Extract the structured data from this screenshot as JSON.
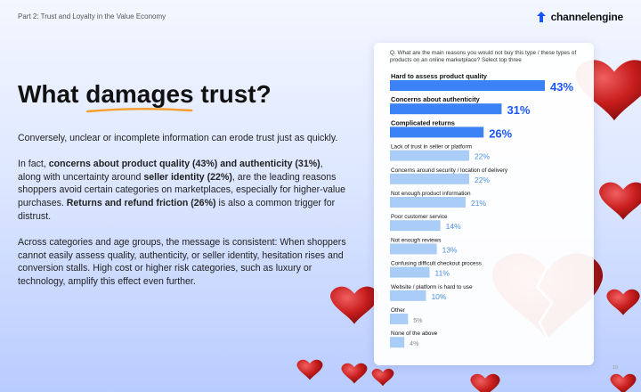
{
  "header": {
    "section_label": "Part 2: Trust and Loyalty in the Value Economy",
    "brand": "channelengine",
    "brand_color": "#1a56ff"
  },
  "headline": {
    "prefix": "What ",
    "emphasis": "damages",
    "suffix": " trust?",
    "underline_color": "#f59e2b"
  },
  "body": {
    "p1": "Conversely, unclear or incomplete information can erode trust just as quickly.",
    "p2": {
      "t1": "In fact, ",
      "b1": "concerns about product quality (43%) and authenticity (31%)",
      "t2": ", along with uncertainty around ",
      "b2": "seller identity (22%)",
      "t3": ", are the leading reasons shoppers avoid certain categories on marketplaces, especially for higher-value purchases. ",
      "b3": "Returns and refund friction (26%)",
      "t4": " is also a common trigger for distrust."
    },
    "p3": "Across categories and age groups, the message is consistent: When shoppers cannot easily assess quality, authenticity, or seller identity, hesitation rises and conversion stalls. High cost or higher risk categories, such as luxury or technology, amplify this effect even further."
  },
  "page_number": "10",
  "chart_data": {
    "type": "bar",
    "orientation": "horizontal",
    "title": "Q. What are the main reasons you would not buy this type / these types of products on an online marketplace? Select top three",
    "categories": [
      "Hard to assess product quality",
      "Concerns about authenticity",
      "Complicated returns",
      "Lack of trust in seller or platform",
      "Concerns around security / location of delivery",
      "Not enough product information",
      "Poor customer service",
      "Not enough reviews",
      "Confusing difficult checkout process",
      "Website / platform is hard to use",
      "Other",
      "None of the above"
    ],
    "values": [
      43,
      31,
      26,
      22,
      22,
      21,
      14,
      13,
      11,
      10,
      5,
      4
    ],
    "value_suffix": "%",
    "highlight_top": 3,
    "colors": {
      "highlight": "#3b82f6",
      "normal": "#a9cdf6",
      "highlight_label": "#1a56ff",
      "normal_label": "#4a8fe0",
      "small_label": "#888888"
    },
    "xlim": [
      0,
      43
    ],
    "grid": false,
    "legend": "none"
  }
}
